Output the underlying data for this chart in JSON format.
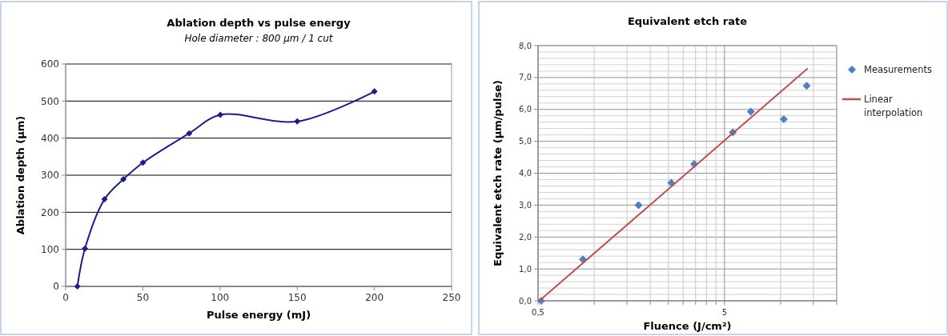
{
  "chart_data": [
    {
      "type": "line",
      "title": "Ablation depth vs pulse energy",
      "subtitle": "Hole diameter : 800 µm / 1 cut",
      "xlabel": "Pulse energy (mJ)",
      "ylabel": "Ablation depth (µm)",
      "xlim": [
        0,
        250
      ],
      "xticks": [
        0,
        50,
        100,
        150,
        200,
        250
      ],
      "ylim": [
        0,
        600
      ],
      "yticks": [
        0,
        100,
        200,
        300,
        400,
        500,
        600
      ],
      "grid": "y",
      "marker": "diamond",
      "legend": false,
      "series": [
        {
          "color": "#1c1c8c",
          "x": [
            7.6,
            12.5,
            25.2,
            37.4,
            50.1,
            80,
            100.2,
            150,
            200
          ],
          "values": [
            0,
            102,
            235,
            289,
            334,
            413,
            463,
            445,
            526
          ]
        }
      ]
    },
    {
      "type": "scatter",
      "title": "Equivalent etch rate",
      "xlabel": "Fluence (J/cm²)",
      "ylabel": "Equivalent etch rate (µm/pulse)",
      "log": "x",
      "xlim": [
        0.5,
        20
      ],
      "xticks": [
        {
          "value": 0.5,
          "label": "0,5"
        },
        {
          "value": 1,
          "label": null
        },
        {
          "value": 1.5,
          "label": null
        },
        {
          "value": 2,
          "label": null
        },
        {
          "value": 2.5,
          "label": null
        },
        {
          "value": 3,
          "label": null
        },
        {
          "value": 3.5,
          "label": null
        },
        {
          "value": 4,
          "label": null
        },
        {
          "value": 4.5,
          "label": null
        },
        5,
        {
          "value": 10,
          "label": null
        },
        {
          "value": 15,
          "label": null
        },
        {
          "value": 20,
          "label": null
        }
      ],
      "ylim": [
        0,
        8
      ],
      "yticks": [
        {
          "value": 0,
          "label": "0,0"
        },
        {
          "value": 0.2,
          "label": null
        },
        {
          "value": 0.4,
          "label": null
        },
        {
          "value": 0.6,
          "label": null
        },
        {
          "value": 0.8,
          "label": null
        },
        {
          "value": 1,
          "label": "1,0"
        },
        {
          "value": 1.2,
          "label": null
        },
        {
          "value": 1.4,
          "label": null
        },
        {
          "value": 1.6,
          "label": null
        },
        {
          "value": 1.8,
          "label": null
        },
        {
          "value": 2,
          "label": "2,0"
        },
        {
          "value": 2.2,
          "label": null
        },
        {
          "value": 2.4,
          "label": null
        },
        {
          "value": 2.6,
          "label": null
        },
        {
          "value": 2.8,
          "label": null
        },
        {
          "value": 3,
          "label": "3,0"
        },
        {
          "value": 3.2,
          "label": null
        },
        {
          "value": 3.4,
          "label": null
        },
        {
          "value": 3.6,
          "label": null
        },
        {
          "value": 3.8,
          "label": null
        },
        {
          "value": 4,
          "label": "4,0"
        },
        {
          "value": 4.2,
          "label": null
        },
        {
          "value": 4.4,
          "label": null
        },
        {
          "value": 4.6,
          "label": null
        },
        {
          "value": 4.8,
          "label": null
        },
        {
          "value": 5,
          "label": "5,0"
        },
        {
          "value": 5.2,
          "label": null
        },
        {
          "value": 5.4,
          "label": null
        },
        {
          "value": 5.6,
          "label": null
        },
        {
          "value": 5.8,
          "label": null
        },
        {
          "value": 6,
          "label": "6,0"
        },
        {
          "value": 6.2,
          "label": null
        },
        {
          "value": 6.4,
          "label": null
        },
        {
          "value": 6.6,
          "label": null
        },
        {
          "value": 6.8,
          "label": null
        },
        {
          "value": 7,
          "label": "7,0"
        },
        {
          "value": 7.2,
          "label": null
        },
        {
          "value": 7.4,
          "label": null
        },
        {
          "value": 7.6,
          "label": null
        },
        {
          "value": 7.8,
          "label": null
        },
        {
          "value": 8,
          "label": "8,0"
        }
      ],
      "grid": true,
      "marker": "diamond",
      "legend": "right",
      "series": [
        {
          "name": "Measurements",
          "color": "#4f81bd",
          "x": [
            0.52,
            0.87,
            1.73,
            2.59,
            3.44,
            5.54,
            6.92,
            10.4,
            13.8
          ],
          "values": [
            0,
            1.3,
            3.0,
            3.7,
            4.29,
            5.28,
            5.93,
            5.69,
            6.74
          ]
        },
        {
          "name": "Linear interpolation",
          "type": "line",
          "marker": "none",
          "color": "#c0504d",
          "x": [
            0.508,
            13.9
          ],
          "values": [
            0,
            7.27
          ]
        }
      ]
    }
  ]
}
